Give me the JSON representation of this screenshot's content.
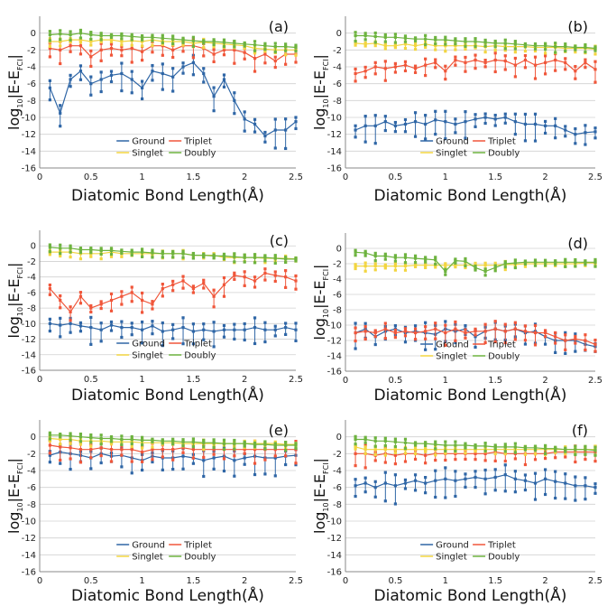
{
  "colors": {
    "ground": "#2f66a6",
    "triplet": "#f0563a",
    "singlet": "#f2d541",
    "doubly": "#6db33f",
    "axis": "#888888",
    "grid": "#d0d0d0"
  },
  "shared": {
    "xlabel": "Diatomic Bond Length(Å)",
    "ylabel_main": "log",
    "ylabel_base": "10",
    "ylabel_abs": "|E-E",
    "ylabel_sub": "FCI",
    "ylabel_end": "|",
    "x_ticks": [
      "0",
      "0.5",
      "1",
      "1.5",
      "2",
      "2.5"
    ],
    "y_ticks": [
      "0",
      "-2",
      "-4",
      "-6",
      "-8",
      "-10",
      "-12",
      "-14",
      "-16"
    ],
    "xlim": [
      0,
      2.5
    ],
    "ylim": [
      -16,
      2
    ]
  },
  "chart_data": [
    {
      "panel": "(a)",
      "type": "line",
      "x": [
        0.1,
        0.2,
        0.3,
        0.4,
        0.5,
        0.6,
        0.7,
        0.8,
        0.9,
        1.0,
        1.1,
        1.2,
        1.3,
        1.4,
        1.5,
        1.6,
        1.7,
        1.8,
        1.9,
        2.0,
        2.1,
        2.2,
        2.3,
        2.4,
        2.5
      ],
      "series": [
        {
          "name": "Ground",
          "values": [
            -6.5,
            -9.5,
            -5.5,
            -4.5,
            -6.0,
            -5.5,
            -5.0,
            -4.8,
            -5.5,
            -6.5,
            -4.5,
            -4.8,
            -5.2,
            -4.0,
            -3.5,
            -4.8,
            -7.5,
            -5.5,
            -8.0,
            -10.2,
            -10.8,
            -12.2,
            -11.5,
            -11.5,
            -10.5
          ]
        },
        {
          "name": "Triplet",
          "values": [
            -1.8,
            -2.0,
            -1.5,
            -1.5,
            -2.8,
            -2.0,
            -1.8,
            -2.0,
            -1.8,
            -2.2,
            -1.5,
            -1.5,
            -2.0,
            -1.5,
            -1.5,
            -1.8,
            -2.5,
            -2.0,
            -2.0,
            -2.3,
            -3.0,
            -2.5,
            -3.3,
            -2.5,
            -2.5
          ]
        },
        {
          "name": "Singlet",
          "values": [
            -1.0,
            -1.0,
            -0.8,
            -0.8,
            -1.0,
            -0.8,
            -0.8,
            -1.0,
            -0.9,
            -1.0,
            -0.8,
            -1.0,
            -1.0,
            -1.0,
            -1.2,
            -1.1,
            -1.2,
            -1.3,
            -1.4,
            -1.5,
            -1.8,
            -1.9,
            -2.0,
            -2.0,
            -2.0
          ]
        },
        {
          "name": "Doubly",
          "values": [
            -0.2,
            -0.1,
            -0.2,
            0.0,
            -0.2,
            -0.3,
            -0.3,
            -0.3,
            -0.4,
            -0.5,
            -0.5,
            -0.6,
            -0.7,
            -0.8,
            -0.9,
            -1.0,
            -1.0,
            -1.1,
            -1.2,
            -1.3,
            -1.4,
            -1.5,
            -1.6,
            -1.6,
            -1.7
          ]
        }
      ]
    },
    {
      "panel": "(b)",
      "type": "line",
      "x": [
        0.1,
        0.2,
        0.3,
        0.4,
        0.5,
        0.6,
        0.7,
        0.8,
        0.9,
        1.0,
        1.1,
        1.2,
        1.3,
        1.4,
        1.5,
        1.6,
        1.7,
        1.8,
        1.9,
        2.0,
        2.1,
        2.2,
        2.3,
        2.4,
        2.5
      ],
      "series": [
        {
          "name": "Ground",
          "values": [
            -11.5,
            -11.0,
            -11.0,
            -10.5,
            -11.0,
            -10.8,
            -10.5,
            -10.8,
            -10.3,
            -10.5,
            -10.8,
            -10.5,
            -10.2,
            -10.0,
            -10.2,
            -10.0,
            -10.5,
            -10.8,
            -10.8,
            -11.0,
            -11.0,
            -11.5,
            -12.0,
            -11.8,
            -11.7
          ]
        },
        {
          "name": "Triplet",
          "values": [
            -4.8,
            -4.5,
            -4.0,
            -4.2,
            -4.0,
            -3.8,
            -4.2,
            -3.8,
            -3.5,
            -4.5,
            -3.2,
            -3.5,
            -3.2,
            -3.5,
            -3.2,
            -3.3,
            -3.8,
            -3.2,
            -3.8,
            -3.5,
            -3.2,
            -3.5,
            -4.5,
            -3.5,
            -4.3
          ]
        },
        {
          "name": "Singlet",
          "values": [
            -1.2,
            -1.3,
            -1.2,
            -1.5,
            -1.5,
            -1.3,
            -1.5,
            -1.3,
            -1.5,
            -1.5,
            -1.5,
            -1.5,
            -1.5,
            -1.6,
            -1.5,
            -1.6,
            -1.6,
            -1.6,
            -1.7,
            -1.7,
            -1.7,
            -1.8,
            -1.8,
            -1.8,
            -1.9
          ]
        },
        {
          "name": "Doubly",
          "values": [
            -0.3,
            -0.3,
            -0.4,
            -0.5,
            -0.5,
            -0.6,
            -0.7,
            -0.7,
            -0.8,
            -0.8,
            -0.9,
            -1.0,
            -1.0,
            -1.1,
            -1.2,
            -1.2,
            -1.3,
            -1.4,
            -1.5,
            -1.5,
            -1.6,
            -1.6,
            -1.7,
            -1.7,
            -1.8
          ]
        }
      ]
    },
    {
      "panel": "(c)",
      "type": "line",
      "x": [
        0.1,
        0.2,
        0.3,
        0.4,
        0.5,
        0.6,
        0.7,
        0.8,
        0.9,
        1.0,
        1.1,
        1.2,
        1.3,
        1.4,
        1.5,
        1.6,
        1.7,
        1.8,
        1.9,
        2.0,
        2.1,
        2.2,
        2.3,
        2.4,
        2.5
      ],
      "series": [
        {
          "name": "Ground",
          "values": [
            -10.0,
            -10.2,
            -10.0,
            -10.3,
            -10.5,
            -10.8,
            -10.2,
            -10.5,
            -10.5,
            -10.8,
            -10.3,
            -11.0,
            -10.8,
            -10.5,
            -11.0,
            -10.8,
            -11.0,
            -10.8,
            -10.8,
            -10.8,
            -10.5,
            -10.8,
            -10.8,
            -10.5,
            -10.8
          ]
        },
        {
          "name": "Triplet",
          "values": [
            -5.5,
            -7.0,
            -8.5,
            -6.5,
            -8.0,
            -7.5,
            -7.0,
            -6.5,
            -6.0,
            -7.0,
            -7.5,
            -5.5,
            -5.0,
            -4.5,
            -5.5,
            -4.8,
            -6.5,
            -5.0,
            -3.8,
            -4.0,
            -4.5,
            -3.5,
            -3.8,
            -4.0,
            -4.5
          ]
        },
        {
          "name": "Singlet",
          "values": [
            -0.8,
            -0.8,
            -0.8,
            -1.0,
            -1.0,
            -1.0,
            -0.8,
            -1.0,
            -1.0,
            -1.0,
            -1.0,
            -1.0,
            -1.0,
            -1.0,
            -1.2,
            -1.2,
            -1.2,
            -1.5,
            -1.5,
            -1.5,
            -1.5,
            -1.6,
            -1.6,
            -1.6,
            -1.7
          ]
        },
        {
          "name": "Doubly",
          "values": [
            -0.2,
            -0.3,
            -0.3,
            -0.5,
            -0.5,
            -0.6,
            -0.6,
            -0.7,
            -0.8,
            -0.8,
            -0.9,
            -1.0,
            -1.0,
            -1.0,
            -1.2,
            -1.2,
            -1.3,
            -1.3,
            -1.4,
            -1.5,
            -1.5,
            -1.5,
            -1.6,
            -1.7,
            -1.7
          ]
        }
      ]
    },
    {
      "panel": "(d)",
      "type": "line",
      "x": [
        0.1,
        0.2,
        0.3,
        0.4,
        0.5,
        0.6,
        0.7,
        0.8,
        0.9,
        1.0,
        1.1,
        1.2,
        1.3,
        1.4,
        1.5,
        1.6,
        1.7,
        1.8,
        1.9,
        2.0,
        2.1,
        2.2,
        2.3,
        2.4,
        2.5
      ],
      "series": [
        {
          "name": "Ground",
          "values": [
            -11.0,
            -10.5,
            -11.5,
            -10.8,
            -10.5,
            -11.0,
            -10.8,
            -11.0,
            -11.2,
            -10.5,
            -10.8,
            -10.5,
            -11.5,
            -10.8,
            -10.5,
            -10.8,
            -10.5,
            -11.0,
            -10.8,
            -11.5,
            -12.0,
            -12.0,
            -12.0,
            -12.5,
            -12.8
          ]
        },
        {
          "name": "Triplet",
          "values": [
            -11.0,
            -10.8,
            -11.0,
            -10.5,
            -11.0,
            -10.8,
            -11.0,
            -10.8,
            -10.5,
            -11.0,
            -10.5,
            -11.0,
            -10.8,
            -10.8,
            -10.5,
            -10.8,
            -10.5,
            -10.8,
            -11.0,
            -11.0,
            -11.5,
            -12.0,
            -11.8,
            -12.0,
            -12.5
          ]
        },
        {
          "name": "Singlet",
          "values": [
            -2.3,
            -2.3,
            -2.3,
            -2.3,
            -2.3,
            -2.3,
            -2.2,
            -2.2,
            -2.2,
            -2.2,
            -2.2,
            -2.2,
            -2.2,
            -2.2,
            -2.2,
            -2.1,
            -2.1,
            -2.0,
            -2.0,
            -2.0,
            -2.0,
            -2.0,
            -2.0,
            -1.9,
            -1.9
          ]
        },
        {
          "name": "Doubly",
          "values": [
            -0.5,
            -0.6,
            -1.0,
            -1.0,
            -1.2,
            -1.2,
            -1.3,
            -1.4,
            -1.5,
            -3.0,
            -1.6,
            -1.7,
            -2.5,
            -3.0,
            -2.5,
            -2.0,
            -1.9,
            -1.8,
            -1.8,
            -1.8,
            -1.8,
            -1.8,
            -1.8,
            -1.8,
            -1.8
          ]
        }
      ]
    },
    {
      "panel": "(e)",
      "type": "line",
      "x": [
        0.1,
        0.2,
        0.3,
        0.4,
        0.5,
        0.6,
        0.7,
        0.8,
        0.9,
        1.0,
        1.1,
        1.2,
        1.3,
        1.4,
        1.5,
        1.6,
        1.7,
        1.8,
        1.9,
        2.0,
        2.1,
        2.2,
        2.3,
        2.4,
        2.5
      ],
      "series": [
        {
          "name": "Ground",
          "values": [
            -2.2,
            -1.8,
            -2.0,
            -2.2,
            -2.5,
            -2.0,
            -2.3,
            -2.2,
            -2.5,
            -2.8,
            -2.3,
            -2.5,
            -2.5,
            -2.3,
            -2.5,
            -2.8,
            -2.5,
            -2.3,
            -2.8,
            -2.5,
            -2.3,
            -2.5,
            -2.5,
            -2.3,
            -2.2
          ]
        },
        {
          "name": "Triplet",
          "values": [
            -1.0,
            -1.2,
            -1.3,
            -1.5,
            -1.5,
            -1.3,
            -1.5,
            -1.5,
            -1.5,
            -1.8,
            -1.5,
            -1.5,
            -1.5,
            -1.3,
            -1.5,
            -1.5,
            -1.5,
            -1.5,
            -1.5,
            -1.5,
            -1.5,
            -1.5,
            -1.5,
            -1.5,
            -1.5
          ]
        },
        {
          "name": "Singlet",
          "values": [
            -0.2,
            -0.3,
            -0.3,
            -0.5,
            -0.5,
            -0.5,
            -0.6,
            -0.6,
            -0.6,
            -0.7,
            -0.7,
            -0.7,
            -0.7,
            -0.8,
            -0.8,
            -0.8,
            -0.8,
            -0.8,
            -0.8,
            -0.8,
            -0.8,
            -0.8,
            -0.8,
            -0.9,
            -0.9
          ]
        },
        {
          "name": "Doubly",
          "values": [
            0.2,
            0.2,
            0.1,
            0.0,
            -0.1,
            -0.2,
            -0.2,
            -0.3,
            -0.3,
            -0.4,
            -0.4,
            -0.5,
            -0.5,
            -0.6,
            -0.6,
            -0.7,
            -0.7,
            -0.8,
            -0.8,
            -0.8,
            -0.9,
            -0.9,
            -1.0,
            -1.0,
            -1.0
          ]
        }
      ]
    },
    {
      "panel": "(f)",
      "type": "line",
      "x": [
        0.1,
        0.2,
        0.3,
        0.4,
        0.5,
        0.6,
        0.7,
        0.8,
        0.9,
        1.0,
        1.1,
        1.2,
        1.3,
        1.4,
        1.5,
        1.6,
        1.7,
        1.8,
        1.9,
        2.0,
        2.1,
        2.2,
        2.3,
        2.4,
        2.5
      ],
      "series": [
        {
          "name": "Ground",
          "values": [
            -5.8,
            -5.5,
            -6.0,
            -5.5,
            -5.8,
            -5.5,
            -5.2,
            -5.5,
            -5.2,
            -5.0,
            -5.2,
            -5.0,
            -4.8,
            -5.0,
            -4.8,
            -4.5,
            -5.0,
            -5.2,
            -5.5,
            -5.0,
            -5.3,
            -5.5,
            -5.8,
            -5.8,
            -6.0
          ]
        },
        {
          "name": "Triplet",
          "values": [
            -2.0,
            -2.0,
            -2.2,
            -2.0,
            -2.2,
            -2.0,
            -2.0,
            -2.2,
            -2.0,
            -2.0,
            -2.0,
            -2.0,
            -2.0,
            -2.0,
            -1.8,
            -2.0,
            -2.0,
            -2.0,
            -2.0,
            -2.0,
            -1.8,
            -1.8,
            -1.8,
            -1.8,
            -1.8
          ]
        },
        {
          "name": "Singlet",
          "values": [
            -1.2,
            -1.5,
            -1.5,
            -1.5,
            -1.5,
            -1.5,
            -1.5,
            -1.5,
            -1.5,
            -1.5,
            -1.5,
            -1.5,
            -1.5,
            -1.5,
            -1.5,
            -1.5,
            -1.5,
            -1.5,
            -1.5,
            -1.5,
            -1.5,
            -1.5,
            -1.5,
            -1.5,
            -1.5
          ]
        },
        {
          "name": "Doubly",
          "values": [
            -0.3,
            -0.3,
            -0.5,
            -0.5,
            -0.6,
            -0.7,
            -0.8,
            -0.8,
            -0.9,
            -1.0,
            -1.0,
            -1.0,
            -1.1,
            -1.1,
            -1.2,
            -1.2,
            -1.2,
            -1.3,
            -1.3,
            -1.4,
            -1.4,
            -1.5,
            -1.5,
            -1.5,
            -1.6
          ]
        }
      ]
    }
  ]
}
